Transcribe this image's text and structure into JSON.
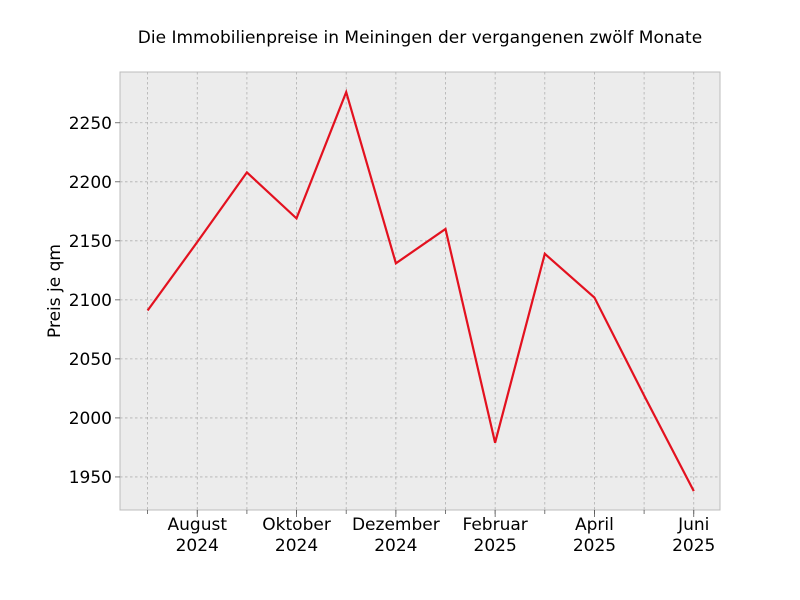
{
  "chart_data": {
    "type": "line",
    "title": "Die Immobilienpreise in Meiningen der vergangenen zwölf Monate",
    "xlabel": "",
    "ylabel": "Preis je qm",
    "x": [
      "2024-07",
      "2024-08",
      "2024-09",
      "2024-10",
      "2024-11",
      "2024-12",
      "2025-01",
      "2025-02",
      "2025-03",
      "2025-04",
      "2025-05",
      "2025-06"
    ],
    "series": [
      {
        "values": [
          2091,
          2149,
          2208,
          2169,
          2276,
          2131,
          2160,
          1979,
          2139,
          2102,
          2019,
          1938
        ]
      }
    ],
    "ylim": [
      1922,
      2293
    ],
    "yticks": [
      1950,
      2000,
      2050,
      2100,
      2150,
      2200,
      2250
    ],
    "xticks": [
      {
        "x": "2024-08",
        "label": [
          "August",
          "2024"
        ]
      },
      {
        "x": "2024-10",
        "label": [
          "Oktober",
          "2024"
        ]
      },
      {
        "x": "2024-12",
        "label": [
          "Dezember",
          "2024"
        ]
      },
      {
        "x": "2025-02",
        "label": [
          "Februar",
          "2025"
        ]
      },
      {
        "x": "2025-04",
        "label": [
          "April",
          "2025"
        ]
      },
      {
        "x": "2025-06",
        "label": [
          "Juni",
          "2025"
        ]
      }
    ],
    "grid": true,
    "colors": {
      "line": "#e3111f",
      "plot_background": "#ececec",
      "grid": "#b0b0b0"
    }
  }
}
